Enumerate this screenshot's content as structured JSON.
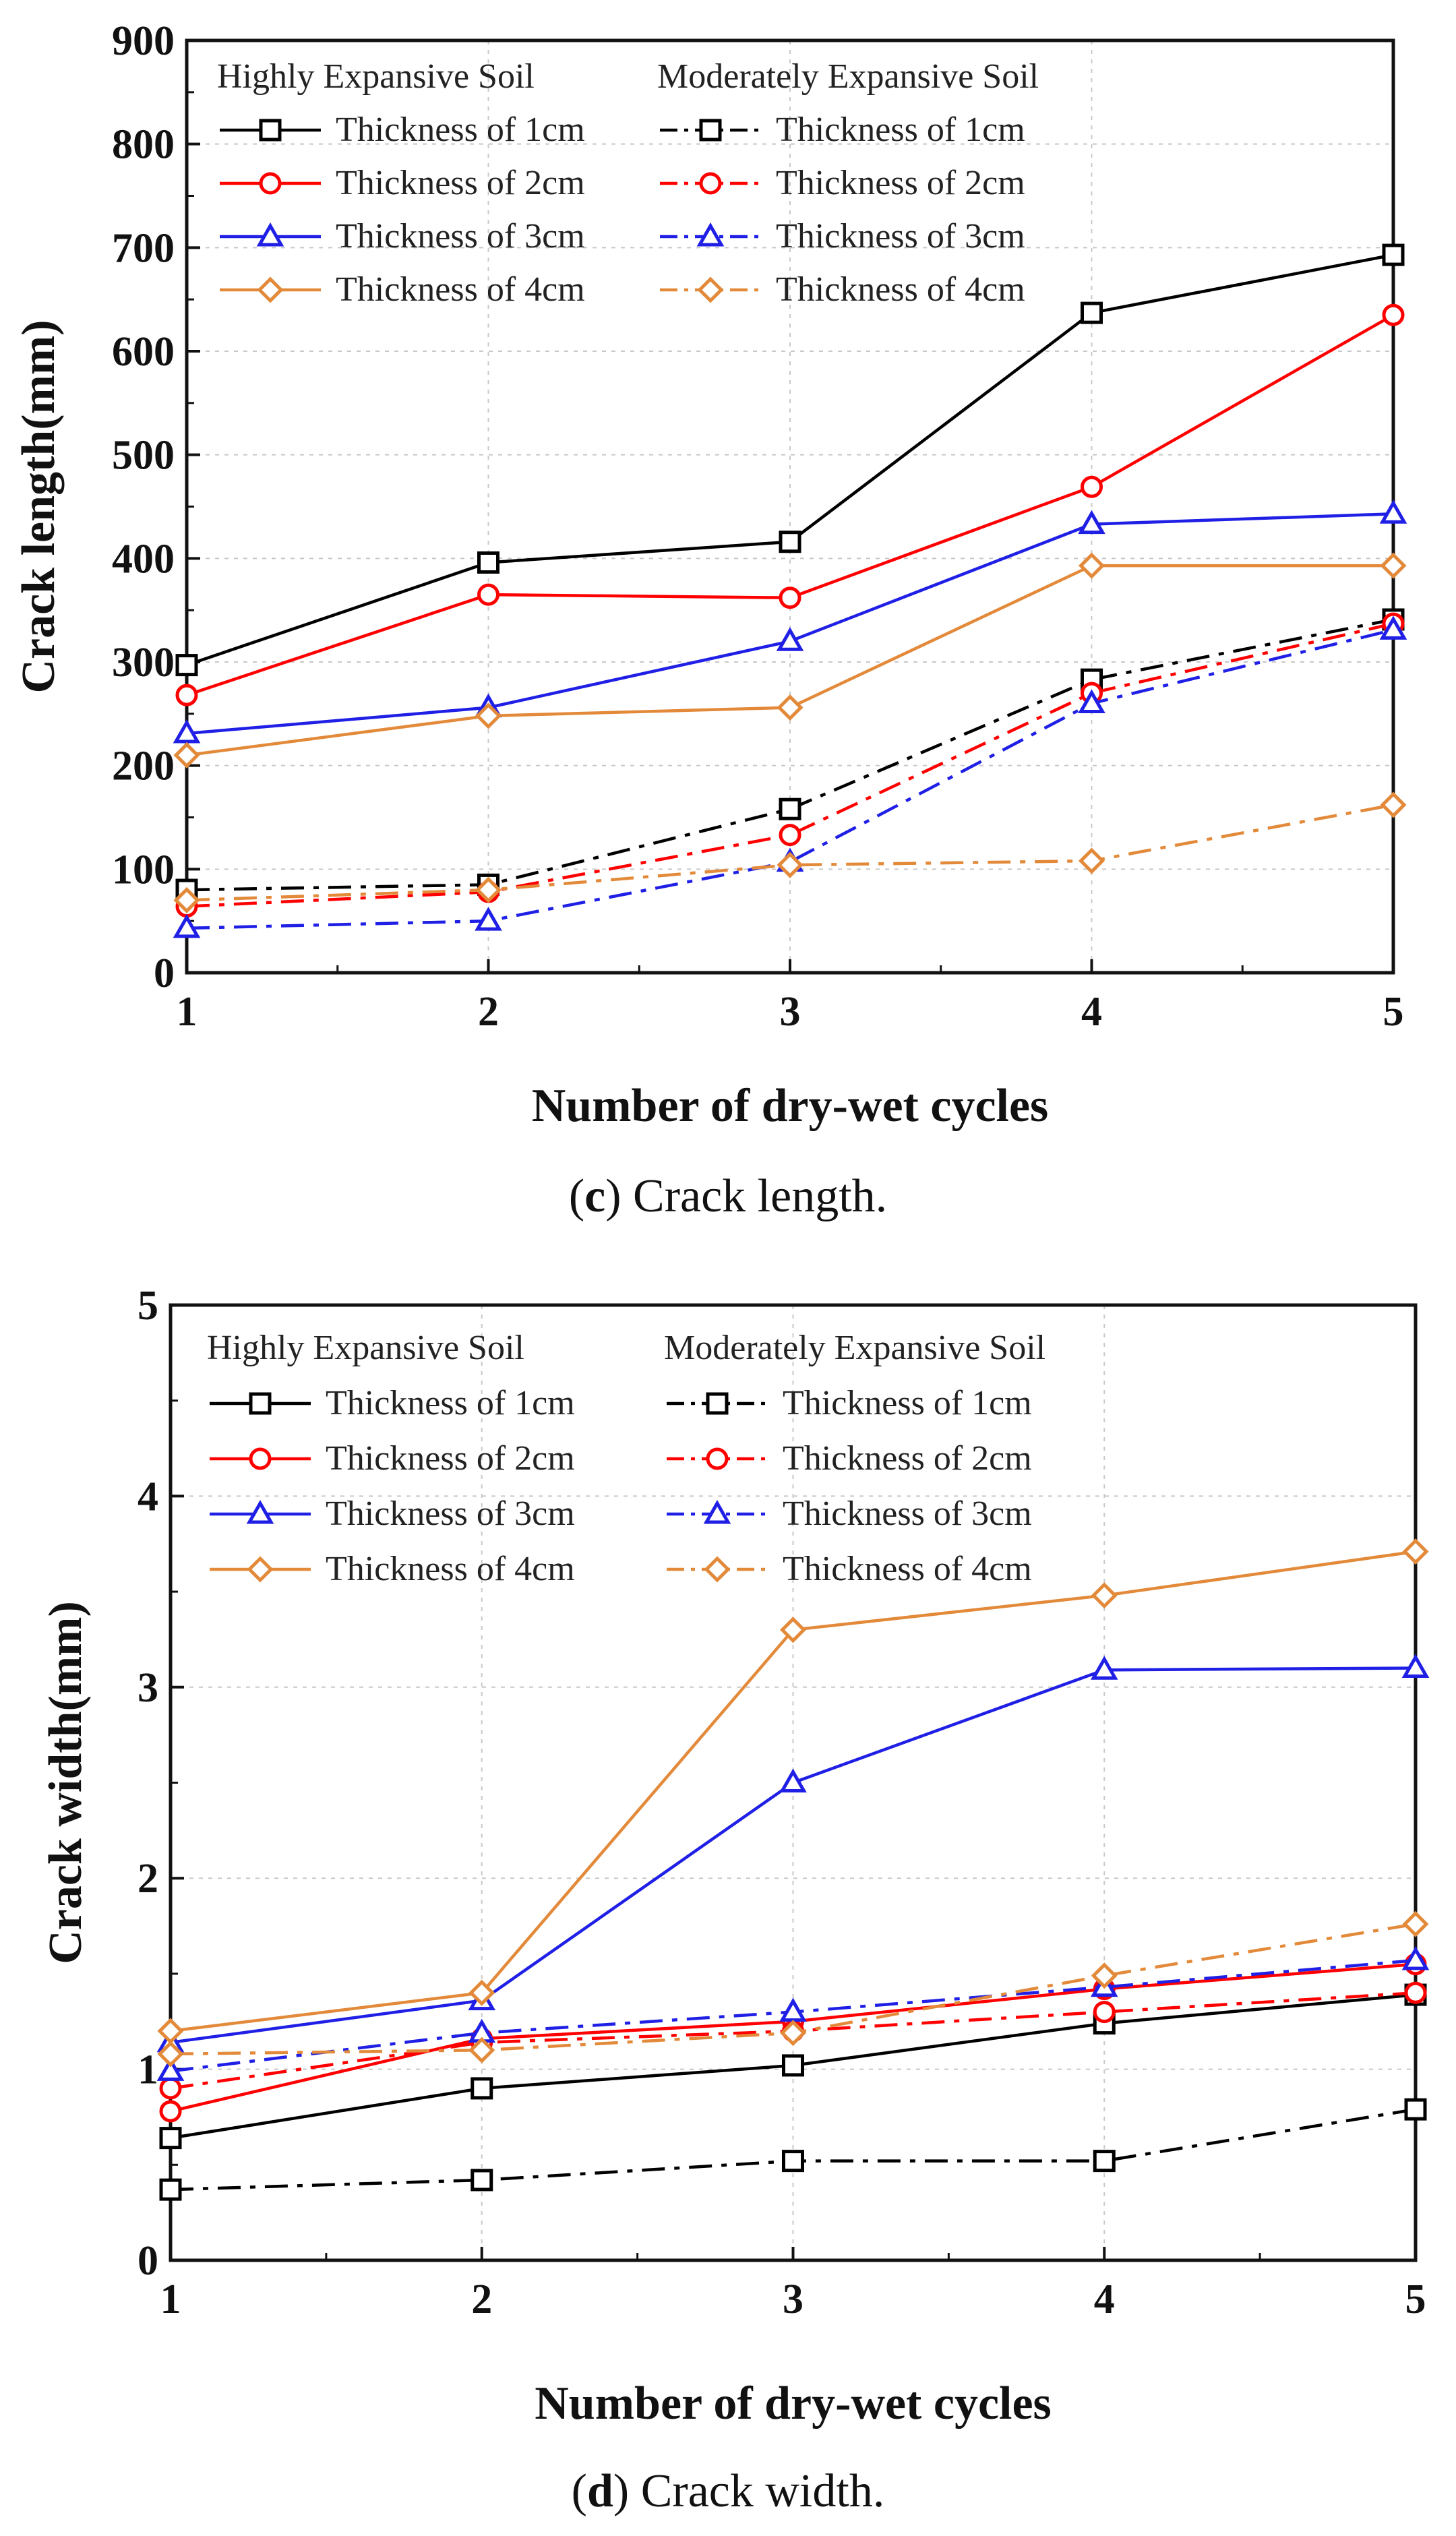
{
  "chart_data": [
    {
      "type": "line",
      "id": "c",
      "caption_letter": "c",
      "caption_text": "Crack length.",
      "xlabel": "Number of dry-wet cycles",
      "ylabel": "Crack length(mm)",
      "x": [
        1,
        2,
        3,
        4,
        5
      ],
      "xticks": [
        "1",
        "2",
        "3",
        "4",
        "5"
      ],
      "yticks": [
        "0",
        "100",
        "200",
        "300",
        "400",
        "500",
        "600",
        "700",
        "800",
        "900"
      ],
      "xlim": [
        1,
        5
      ],
      "ylim": [
        0,
        900
      ],
      "legend_headers": [
        "Highly Expansive Soil",
        "Moderately Expansive Soil"
      ],
      "series": [
        {
          "name": "Thickness of 1cm",
          "group": "Highly Expansive Soil",
          "color": "#000000",
          "marker": "square",
          "dash": "solid",
          "values": [
            297,
            396,
            416,
            637,
            693
          ]
        },
        {
          "name": "Thickness of 2cm",
          "group": "Highly Expansive Soil",
          "color": "#ff0000",
          "marker": "circle",
          "dash": "solid",
          "values": [
            268,
            365,
            362,
            469,
            635
          ]
        },
        {
          "name": "Thickness of 3cm",
          "group": "Highly Expansive Soil",
          "color": "#1f1fe6",
          "marker": "triangle",
          "dash": "solid",
          "values": [
            231,
            256,
            320,
            433,
            443
          ]
        },
        {
          "name": "Thickness of 4cm",
          "group": "Highly Expansive Soil",
          "color": "#e38a3a",
          "marker": "diamond",
          "dash": "solid",
          "values": [
            210,
            248,
            256,
            393,
            393
          ]
        },
        {
          "name": "Thickness of 1cm",
          "group": "Moderately Expansive Soil",
          "color": "#000000",
          "marker": "square",
          "dash": "dashdot",
          "values": [
            80,
            85,
            158,
            283,
            341
          ]
        },
        {
          "name": "Thickness of 2cm",
          "group": "Moderately Expansive Soil",
          "color": "#ff0000",
          "marker": "circle",
          "dash": "dashdot",
          "values": [
            64,
            78,
            133,
            270,
            337
          ]
        },
        {
          "name": "Thickness of 3cm",
          "group": "Moderately Expansive Soil",
          "color": "#1f1fe6",
          "marker": "triangle",
          "dash": "dashdot",
          "values": [
            43,
            50,
            107,
            260,
            331
          ]
        },
        {
          "name": "Thickness of 4cm",
          "group": "Moderately Expansive Soil",
          "color": "#e38a3a",
          "marker": "diamond",
          "dash": "dashdot",
          "values": [
            70,
            80,
            104,
            108,
            162
          ]
        }
      ]
    },
    {
      "type": "line",
      "id": "d",
      "caption_letter": "d",
      "caption_text": "Crack width.",
      "xlabel": "Number of dry-wet cycles",
      "ylabel": "Crack width(mm)",
      "x": [
        1,
        2,
        3,
        4,
        5
      ],
      "xticks": [
        "1",
        "2",
        "3",
        "4",
        "5"
      ],
      "yticks": [
        "0",
        "1",
        "2",
        "3",
        "4",
        "5"
      ],
      "xlim": [
        1,
        5
      ],
      "ylim": [
        0,
        5
      ],
      "legend_headers": [
        "Highly Expansive Soil",
        "Moderately Expansive Soil"
      ],
      "series": [
        {
          "name": "Thickness of 1cm",
          "group": "Highly Expansive Soil",
          "color": "#000000",
          "marker": "square",
          "dash": "solid",
          "values": [
            0.64,
            0.9,
            1.02,
            1.24,
            1.39
          ]
        },
        {
          "name": "Thickness of 2cm",
          "group": "Highly Expansive Soil",
          "color": "#ff0000",
          "marker": "circle",
          "dash": "solid",
          "values": [
            0.78,
            1.16,
            1.25,
            1.42,
            1.55
          ]
        },
        {
          "name": "Thickness of 3cm",
          "group": "Highly Expansive Soil",
          "color": "#1f1fe6",
          "marker": "triangle",
          "dash": "solid",
          "values": [
            1.14,
            1.36,
            2.5,
            3.09,
            3.1
          ]
        },
        {
          "name": "Thickness of 4cm",
          "group": "Highly Expansive Soil",
          "color": "#e38a3a",
          "marker": "diamond",
          "dash": "solid",
          "values": [
            1.2,
            1.4,
            3.3,
            3.48,
            3.71
          ]
        },
        {
          "name": "Thickness of 1cm",
          "group": "Moderately Expansive Soil",
          "color": "#000000",
          "marker": "square",
          "dash": "dashdot",
          "values": [
            0.37,
            0.42,
            0.52,
            0.52,
            0.79
          ]
        },
        {
          "name": "Thickness of 2cm",
          "group": "Moderately Expansive Soil",
          "color": "#ff0000",
          "marker": "circle",
          "dash": "dashdot",
          "values": [
            0.9,
            1.14,
            1.2,
            1.3,
            1.4
          ]
        },
        {
          "name": "Thickness of 3cm",
          "group": "Moderately Expansive Soil",
          "color": "#1f1fe6",
          "marker": "triangle",
          "dash": "dashdot",
          "values": [
            0.99,
            1.19,
            1.3,
            1.43,
            1.57
          ]
        },
        {
          "name": "Thickness of 4cm",
          "group": "Moderately Expansive Soil",
          "color": "#e38a3a",
          "marker": "diamond",
          "dash": "dashdot",
          "values": [
            1.08,
            1.1,
            1.19,
            1.49,
            1.76
          ]
        }
      ]
    }
  ]
}
